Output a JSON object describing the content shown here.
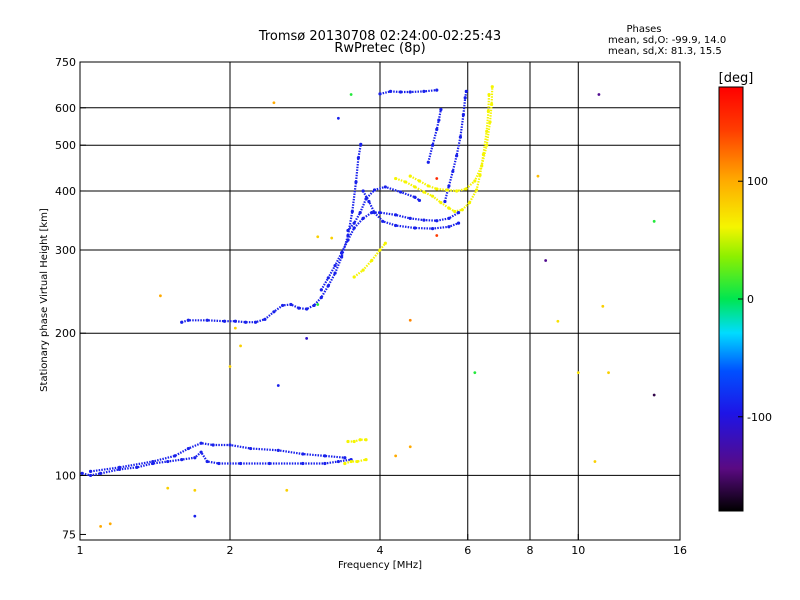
{
  "chart_data": {
    "type": "scatter",
    "title": "Tromsø 20130708 02:24:00-02:25:43",
    "subtitle": "RwPretec (8p)",
    "xlabel": "Frequency [MHz]",
    "ylabel": "Stationary phase Virtual Height [km]",
    "x_scale": "log",
    "y_scale": "log",
    "xlim": [
      1,
      16
    ],
    "ylim": [
      73,
      750
    ],
    "x_ticks": [
      1,
      2,
      4,
      6,
      8,
      10,
      16
    ],
    "y_ticks": [
      75,
      100,
      200,
      300,
      400,
      500,
      600,
      750
    ],
    "x_grid": [
      2,
      4,
      6,
      8,
      10
    ],
    "y_grid": [
      100,
      200,
      300,
      400,
      500,
      600
    ],
    "grid": true,
    "phase_box": {
      "heading": "Phases",
      "line1": "mean, sd,O: -99.9, 14.0",
      "line2": "mean, sd,X:  81.3, 15.5"
    },
    "colorbar": {
      "label": "[deg]",
      "range": [
        -180,
        180
      ],
      "ticks": [
        {
          "value": 100,
          "label": "100"
        },
        {
          "value": 0,
          "label": "0"
        },
        {
          "value": -100,
          "label": "-100"
        }
      ]
    },
    "series": [
      {
        "phase": -100,
        "segments": [
          [
            [
              1.01,
              101
            ],
            [
              1.05,
              100
            ],
            [
              1.1,
              101
            ],
            [
              1.2,
              103
            ],
            [
              1.3,
              104
            ],
            [
              1.4,
              106
            ],
            [
              1.5,
              107
            ],
            [
              1.6,
              108
            ],
            [
              1.7,
              109
            ],
            [
              1.75,
              112
            ],
            [
              1.8,
              107
            ],
            [
              1.9,
              106
            ],
            [
              2.1,
              106
            ],
            [
              2.4,
              106
            ],
            [
              2.8,
              106
            ],
            [
              3.1,
              106
            ],
            [
              3.3,
              107
            ],
            [
              3.5,
              108
            ]
          ],
          [
            [
              1.05,
              102
            ],
            [
              1.2,
              104
            ],
            [
              1.4,
              107
            ],
            [
              1.55,
              110
            ],
            [
              1.65,
              114
            ],
            [
              1.75,
              117
            ],
            [
              1.85,
              116
            ],
            [
              2.0,
              116
            ],
            [
              2.2,
              114
            ],
            [
              2.5,
              113
            ],
            [
              2.8,
              111
            ],
            [
              3.1,
              110
            ],
            [
              3.4,
              109
            ]
          ],
          [
            [
              1.6,
              211
            ],
            [
              1.65,
              213
            ],
            [
              1.8,
              213
            ],
            [
              1.95,
              212
            ],
            [
              2.05,
              212
            ],
            [
              2.15,
              211
            ],
            [
              2.25,
              211
            ],
            [
              2.35,
              214
            ],
            [
              2.45,
              222
            ],
            [
              2.55,
              229
            ],
            [
              2.65,
              230
            ],
            [
              2.75,
              226
            ],
            [
              2.85,
              225
            ],
            [
              2.95,
              229
            ],
            [
              3.05,
              238
            ],
            [
              3.15,
              252
            ],
            [
              3.25,
              268
            ],
            [
              3.35,
              290
            ],
            [
              3.45,
              322
            ],
            [
              3.52,
              362
            ],
            [
              3.58,
              418
            ],
            [
              3.62,
              470
            ],
            [
              3.66,
              502
            ]
          ],
          [
            [
              3.05,
              247
            ],
            [
              3.15,
              262
            ],
            [
              3.25,
              278
            ],
            [
              3.35,
              296
            ],
            [
              3.45,
              315
            ],
            [
              3.55,
              334
            ],
            [
              3.7,
              350
            ],
            [
              3.85,
              360
            ],
            [
              4.0,
              360
            ],
            [
              4.3,
              356
            ],
            [
              4.6,
              350
            ],
            [
              4.9,
              347
            ],
            [
              5.2,
              346
            ],
            [
              5.5,
              350
            ],
            [
              5.75,
              360
            ]
          ],
          [
            [
              3.7,
              400
            ],
            [
              3.8,
              380
            ],
            [
              3.9,
              360
            ],
            [
              4.05,
              345
            ],
            [
              4.3,
              338
            ],
            [
              4.7,
              334
            ],
            [
              5.1,
              333
            ],
            [
              5.5,
              336
            ],
            [
              5.75,
              342
            ]
          ],
          [
            [
              3.45,
              330
            ],
            [
              3.55,
              342
            ],
            [
              3.65,
              360
            ],
            [
              3.75,
              385
            ],
            [
              3.9,
              402
            ],
            [
              4.1,
              408
            ],
            [
              4.4,
              398
            ],
            [
              4.7,
              388
            ],
            [
              4.8,
              382
            ]
          ],
          [
            [
              5.4,
              380
            ],
            [
              5.5,
              410
            ],
            [
              5.6,
              440
            ],
            [
              5.7,
              475
            ],
            [
              5.8,
              520
            ],
            [
              5.88,
              580
            ],
            [
              5.93,
              630
            ],
            [
              5.96,
              650
            ]
          ],
          [
            [
              5.0,
              460
            ],
            [
              5.1,
              500
            ],
            [
              5.2,
              540
            ],
            [
              5.25,
              565
            ],
            [
              5.3,
              595
            ]
          ],
          [
            [
              4.0,
              642
            ],
            [
              4.2,
              650
            ],
            [
              4.4,
              648
            ],
            [
              4.6,
              648
            ],
            [
              4.9,
              650
            ],
            [
              5.2,
              654
            ]
          ]
        ]
      },
      {
        "phase": 80,
        "segments": [
          [
            [
              3.55,
              263
            ],
            [
              3.7,
              272
            ],
            [
              3.85,
              285
            ],
            [
              4.0,
              300
            ],
            [
              4.1,
              310
            ]
          ],
          [
            [
              4.3,
              425
            ],
            [
              4.5,
              418
            ],
            [
              4.7,
              408
            ],
            [
              4.9,
              398
            ],
            [
              5.1,
              390
            ],
            [
              5.3,
              378
            ],
            [
              5.5,
              368
            ],
            [
              5.65,
              362
            ],
            [
              5.85,
              365
            ],
            [
              6.05,
              378
            ],
            [
              6.25,
              402
            ],
            [
              6.35,
              432
            ],
            [
              6.45,
              478
            ],
            [
              6.55,
              535
            ],
            [
              6.6,
              590
            ],
            [
              6.62,
              640
            ]
          ],
          [
            [
              4.6,
              430
            ],
            [
              4.8,
              420
            ],
            [
              5.0,
              410
            ],
            [
              5.2,
              404
            ],
            [
              5.45,
              402
            ],
            [
              5.7,
              400
            ],
            [
              5.95,
              404
            ],
            [
              6.2,
              420
            ],
            [
              6.4,
              452
            ],
            [
              6.55,
              500
            ],
            [
              6.65,
              560
            ],
            [
              6.7,
              610
            ],
            [
              6.72,
              665
            ]
          ],
          [
            [
              3.45,
              118
            ],
            [
              3.55,
              118
            ],
            [
              3.65,
              119
            ],
            [
              3.75,
              119
            ]
          ],
          [
            [
              3.4,
              106
            ],
            [
              3.5,
              107
            ],
            [
              3.6,
              107
            ],
            [
              3.75,
              108
            ]
          ]
        ]
      }
    ],
    "scatter_points": [
      {
        "x": 1.45,
        "y": 240,
        "phase": 120
      },
      {
        "x": 2.45,
        "y": 615,
        "phase": 120
      },
      {
        "x": 3.5,
        "y": 640,
        "phase": 10
      },
      {
        "x": 3.3,
        "y": 570,
        "phase": -100
      },
      {
        "x": 5.2,
        "y": 425,
        "phase": 160
      },
      {
        "x": 5.2,
        "y": 322,
        "phase": 150
      },
      {
        "x": 4.6,
        "y": 213,
        "phase": 130
      },
      {
        "x": 8.3,
        "y": 430,
        "phase": 110
      },
      {
        "x": 8.6,
        "y": 285,
        "phase": -140
      },
      {
        "x": 9.1,
        "y": 212,
        "phase": 90
      },
      {
        "x": 10.0,
        "y": 165,
        "phase": 90
      },
      {
        "x": 11.2,
        "y": 228,
        "phase": 100
      },
      {
        "x": 11.5,
        "y": 165,
        "phase": 100
      },
      {
        "x": 14.2,
        "y": 345,
        "phase": 10
      },
      {
        "x": 14.2,
        "y": 148,
        "phase": -160
      },
      {
        "x": 11.0,
        "y": 640,
        "phase": -140
      },
      {
        "x": 6.2,
        "y": 165,
        "phase": 10
      },
      {
        "x": 2.0,
        "y": 170,
        "phase": 100
      },
      {
        "x": 2.1,
        "y": 188,
        "phase": 100
      },
      {
        "x": 2.05,
        "y": 205,
        "phase": 100
      },
      {
        "x": 2.5,
        "y": 155,
        "phase": -100
      },
      {
        "x": 2.85,
        "y": 195,
        "phase": -120
      },
      {
        "x": 1.7,
        "y": 82,
        "phase": -100
      },
      {
        "x": 1.7,
        "y": 93,
        "phase": 100
      },
      {
        "x": 2.6,
        "y": 93,
        "phase": 100
      },
      {
        "x": 1.1,
        "y": 78,
        "phase": 120
      },
      {
        "x": 1.15,
        "y": 79,
        "phase": 120
      },
      {
        "x": 3.0,
        "y": 320,
        "phase": 100
      },
      {
        "x": 4.6,
        "y": 115,
        "phase": 120
      },
      {
        "x": 10.8,
        "y": 107,
        "phase": 100
      },
      {
        "x": 3.0,
        "y": 230,
        "phase": 10
      },
      {
        "x": 3.2,
        "y": 318,
        "phase": 100
      },
      {
        "x": 4.3,
        "y": 110,
        "phase": 120
      },
      {
        "x": 1.5,
        "y": 94,
        "phase": 100
      }
    ]
  }
}
